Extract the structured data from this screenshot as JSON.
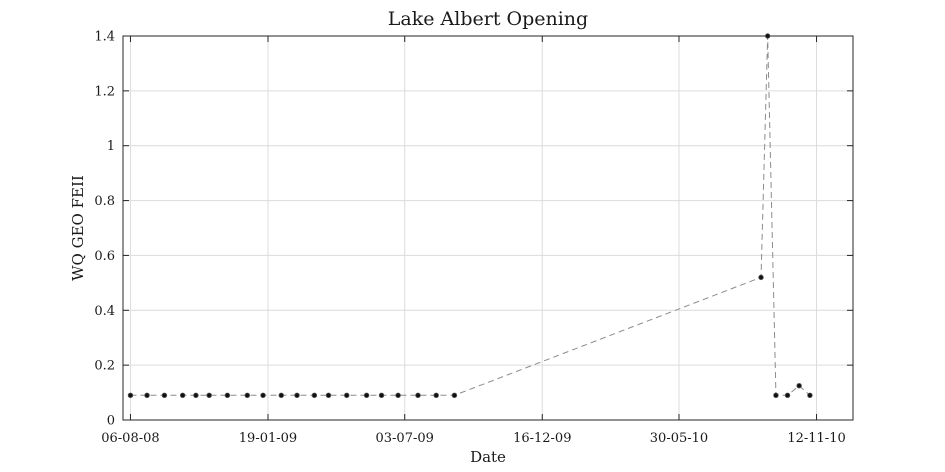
{
  "chart_data": {
    "type": "line",
    "title": "Lake Albert Opening",
    "xlabel": "Date",
    "ylabel": "WQ GEO FEII",
    "x_axis_type": "date",
    "xlim": [
      "2008-07-28",
      "2010-12-26"
    ],
    "ylim": [
      0,
      1.4
    ],
    "x_ticks": [
      {
        "date": "2008-08-06",
        "label": "06-08-08"
      },
      {
        "date": "2009-01-19",
        "label": "19-01-09"
      },
      {
        "date": "2009-07-03",
        "label": "03-07-09"
      },
      {
        "date": "2009-12-16",
        "label": "16-12-09"
      },
      {
        "date": "2010-05-30",
        "label": "30-05-10"
      },
      {
        "date": "2010-11-12",
        "label": "12-11-10"
      }
    ],
    "y_ticks": [
      {
        "value": 0,
        "label": "0"
      },
      {
        "value": 0.2,
        "label": "0.2"
      },
      {
        "value": 0.4,
        "label": "0.4"
      },
      {
        "value": 0.6,
        "label": "0.6"
      },
      {
        "value": 0.8,
        "label": "0.8"
      },
      {
        "value": 1.0,
        "label": "1"
      },
      {
        "value": 1.2,
        "label": "1.2"
      },
      {
        "value": 1.4,
        "label": "1.4"
      }
    ],
    "grid": true,
    "legend": "none",
    "series_color": "#8c8c8c",
    "marker_color": "#111111",
    "series": [
      {
        "points": [
          {
            "x": "2008-08-06",
            "y": 0.09
          },
          {
            "x": "2008-08-26",
            "y": 0.09
          },
          {
            "x": "2008-09-16",
            "y": 0.09
          },
          {
            "x": "2008-10-08",
            "y": 0.09
          },
          {
            "x": "2008-10-24",
            "y": 0.09
          },
          {
            "x": "2008-11-09",
            "y": 0.09
          },
          {
            "x": "2008-12-01",
            "y": 0.09
          },
          {
            "x": "2008-12-25",
            "y": 0.09
          },
          {
            "x": "2009-01-13",
            "y": 0.09
          },
          {
            "x": "2009-02-04",
            "y": 0.09
          },
          {
            "x": "2009-02-23",
            "y": 0.09
          },
          {
            "x": "2009-03-16",
            "y": 0.09
          },
          {
            "x": "2009-04-02",
            "y": 0.09
          },
          {
            "x": "2009-04-24",
            "y": 0.09
          },
          {
            "x": "2009-05-18",
            "y": 0.09
          },
          {
            "x": "2009-06-05",
            "y": 0.09
          },
          {
            "x": "2009-06-25",
            "y": 0.09
          },
          {
            "x": "2009-07-19",
            "y": 0.09
          },
          {
            "x": "2009-08-10",
            "y": 0.09
          },
          {
            "x": "2009-09-01",
            "y": 0.09
          },
          {
            "x": "2010-09-06",
            "y": 0.52
          },
          {
            "x": "2010-09-14",
            "y": 1.4
          },
          {
            "x": "2010-09-24",
            "y": 0.09
          },
          {
            "x": "2010-10-08",
            "y": 0.09
          },
          {
            "x": "2010-10-22",
            "y": 0.125
          },
          {
            "x": "2010-11-04",
            "y": 0.09
          }
        ]
      }
    ]
  }
}
